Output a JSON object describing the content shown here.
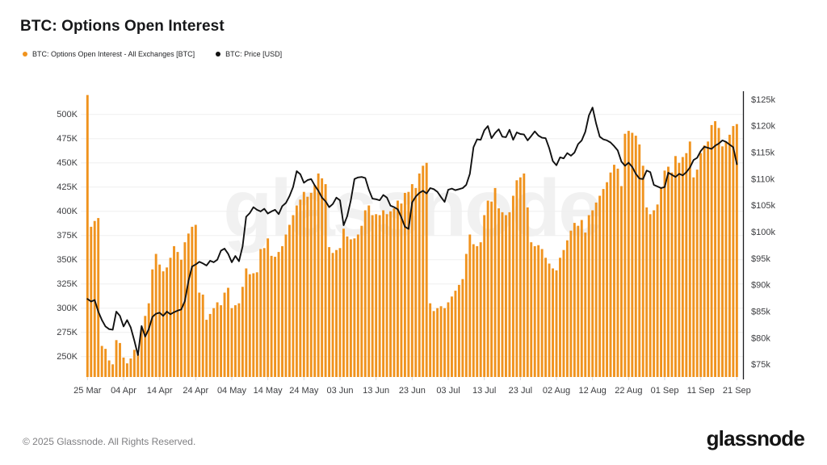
{
  "page": {
    "title": "BTC: Options Open Interest"
  },
  "legend": [
    {
      "label": "BTC: Options Open Interest - All Exchanges [BTC]",
      "color": "#F0931E"
    },
    {
      "label": "BTC: Price [USD]",
      "color": "#111111"
    }
  ],
  "watermark": "glassnode",
  "footer": {
    "copyright": "© 2025 Glassnode. All Rights Reserved.",
    "logo_text": "glassnode"
  },
  "colors": {
    "bar": "#F0931E",
    "line": "#111111",
    "grid": "#efefef",
    "axis_text": "#3c3d40",
    "right_spine": "#1c1c1e",
    "bottom_tick": "#d9d9dc",
    "background": "#ffffff"
  },
  "chart_data": {
    "type": "combo",
    "grid": true,
    "legend_position": "top-left",
    "x_tick_labels": [
      "25 Mar",
      "04 Apr",
      "14 Apr",
      "24 Apr",
      "04 May",
      "14 May",
      "24 May",
      "03 Jun",
      "13 Jun",
      "23 Jun",
      "03 Jul",
      "13 Jul",
      "23 Jul",
      "02 Aug",
      "12 Aug",
      "22 Aug",
      "01 Sep",
      "11 Sep",
      "21 Sep"
    ],
    "x_tick_day_index": [
      0,
      10,
      20,
      30,
      40,
      50,
      60,
      70,
      80,
      90,
      100,
      110,
      120,
      130,
      140,
      150,
      160,
      170,
      180
    ],
    "left_axis": {
      "tick_labels": [
        "250K",
        "275K",
        "300K",
        "325K",
        "350K",
        "375K",
        "400K",
        "425K",
        "450K",
        "475K",
        "500K"
      ],
      "tick_values_k": [
        250,
        275,
        300,
        325,
        350,
        375,
        400,
        425,
        450,
        475,
        500
      ],
      "range_k": [
        228.9,
        522.2
      ]
    },
    "right_axis": {
      "tick_labels": [
        "$75k",
        "$80k",
        "$85k",
        "$90k",
        "$95k",
        "$100k",
        "$105k",
        "$110k",
        "$115k",
        "$120k",
        "$125k"
      ],
      "tick_values_k_usd": [
        75,
        80,
        85,
        90,
        95,
        100,
        105,
        110,
        115,
        120,
        125
      ],
      "range_k_usd": [
        72.7,
        126.6
      ]
    },
    "series": [
      {
        "name": "BTC: Options Open Interest - All Exchanges [BTC]",
        "type": "bar",
        "axis": "left",
        "unit": "K BTC",
        "color": "#F0931E",
        "values_k_btc": [
          520,
          384,
          390,
          393,
          261,
          258,
          246,
          242,
          267,
          264,
          249,
          243,
          248,
          257,
          253,
          278,
          292,
          305,
          340,
          356,
          345,
          338,
          342,
          352,
          364,
          358,
          350,
          368,
          377,
          384,
          386,
          316,
          314,
          288,
          294,
          300,
          306,
          303,
          316,
          321,
          300,
          303,
          305,
          322,
          341,
          335,
          336,
          337,
          361,
          362,
          372,
          354,
          353,
          358,
          364,
          376,
          386,
          396,
          406,
          412,
          420,
          415,
          419,
          427,
          439,
          434,
          428,
          363,
          357,
          360,
          362,
          382,
          374,
          371,
          372,
          376,
          385,
          401,
          406,
          396,
          397,
          396,
          401,
          397,
          400,
          403,
          411,
          408,
          419,
          420,
          428,
          424,
          439,
          447,
          450,
          305,
          297,
          300,
          302,
          300,
          306,
          312,
          318,
          324,
          330,
          356,
          376,
          366,
          364,
          368,
          396,
          411,
          410,
          424,
          403,
          399,
          396,
          399,
          416,
          432,
          435,
          439,
          404,
          368,
          364,
          365,
          361,
          352,
          346,
          341,
          339,
          352,
          360,
          370,
          380,
          388,
          385,
          391,
          378,
          396,
          401,
          409,
          416,
          423,
          430,
          440,
          448,
          444,
          426,
          480,
          483,
          481,
          478,
          469,
          447,
          404,
          397,
          401,
          407,
          425,
          442,
          446,
          440,
          457,
          450,
          456,
          460,
          472,
          435,
          443,
          460,
          468,
          472,
          489,
          493,
          486,
          467,
          472,
          479,
          488,
          490
        ]
      },
      {
        "name": "BTC: Price [USD]",
        "type": "line",
        "axis": "right",
        "unit": "K USD",
        "color": "#111111",
        "values_k_usd": [
          87.4,
          86.9,
          87.2,
          85.0,
          83.4,
          82.2,
          81.7,
          81.6,
          85.0,
          84.2,
          82.2,
          83.4,
          82.0,
          79.5,
          76.8,
          82.3,
          80.3,
          81.7,
          84.0,
          84.6,
          84.8,
          84.2,
          85.0,
          84.5,
          84.9,
          85.2,
          85.4,
          87.0,
          90.8,
          93.5,
          93.9,
          94.4,
          94.1,
          93.7,
          94.6,
          94.3,
          94.8,
          96.5,
          96.9,
          95.9,
          94.3,
          95.5,
          94.5,
          97.3,
          102.9,
          103.6,
          104.7,
          104.2,
          103.9,
          104.4,
          103.5,
          103.9,
          104.2,
          103.4,
          104.9,
          105.5,
          106.8,
          108.5,
          111.5,
          110.9,
          109.3,
          109.8,
          110.0,
          108.8,
          107.8,
          106.5,
          105.8,
          104.7,
          105.3,
          106.5,
          106.0,
          101.3,
          103.0,
          106.0,
          110.0,
          110.3,
          110.4,
          110.2,
          108.0,
          106.3,
          106.2,
          106.0,
          107.0,
          106.5,
          105.0,
          104.7,
          104.3,
          102.8,
          101.0,
          100.6,
          105.6,
          106.7,
          107.4,
          107.8,
          107.3,
          108.3,
          108.1,
          107.6,
          106.6,
          105.7,
          108.0,
          108.2,
          107.9,
          108.1,
          108.3,
          108.9,
          111.0,
          116.0,
          117.5,
          117.4,
          119.2,
          120.0,
          117.7,
          118.7,
          119.4,
          118.0,
          117.9,
          119.3,
          117.4,
          118.8,
          118.5,
          118.4,
          117.3,
          118.1,
          119.0,
          118.2,
          117.8,
          117.7,
          115.8,
          113.4,
          112.6,
          114.1,
          113.9,
          114.9,
          114.4,
          115.0,
          116.6,
          117.3,
          118.9,
          122.0,
          123.5,
          120.5,
          118.0,
          117.5,
          117.3,
          116.9,
          116.2,
          115.4,
          113.3,
          112.5,
          113.1,
          112.3,
          111.0,
          110.1,
          110.0,
          111.6,
          111.3,
          108.9,
          108.6,
          108.3,
          108.5,
          111.2,
          110.8,
          110.4,
          111.0,
          110.7,
          111.3,
          112.2,
          113.6,
          114.0,
          115.3,
          116.1,
          115.9,
          115.7,
          116.3,
          116.7,
          117.3,
          117.0,
          116.5,
          116.0,
          112.8
        ]
      }
    ]
  }
}
